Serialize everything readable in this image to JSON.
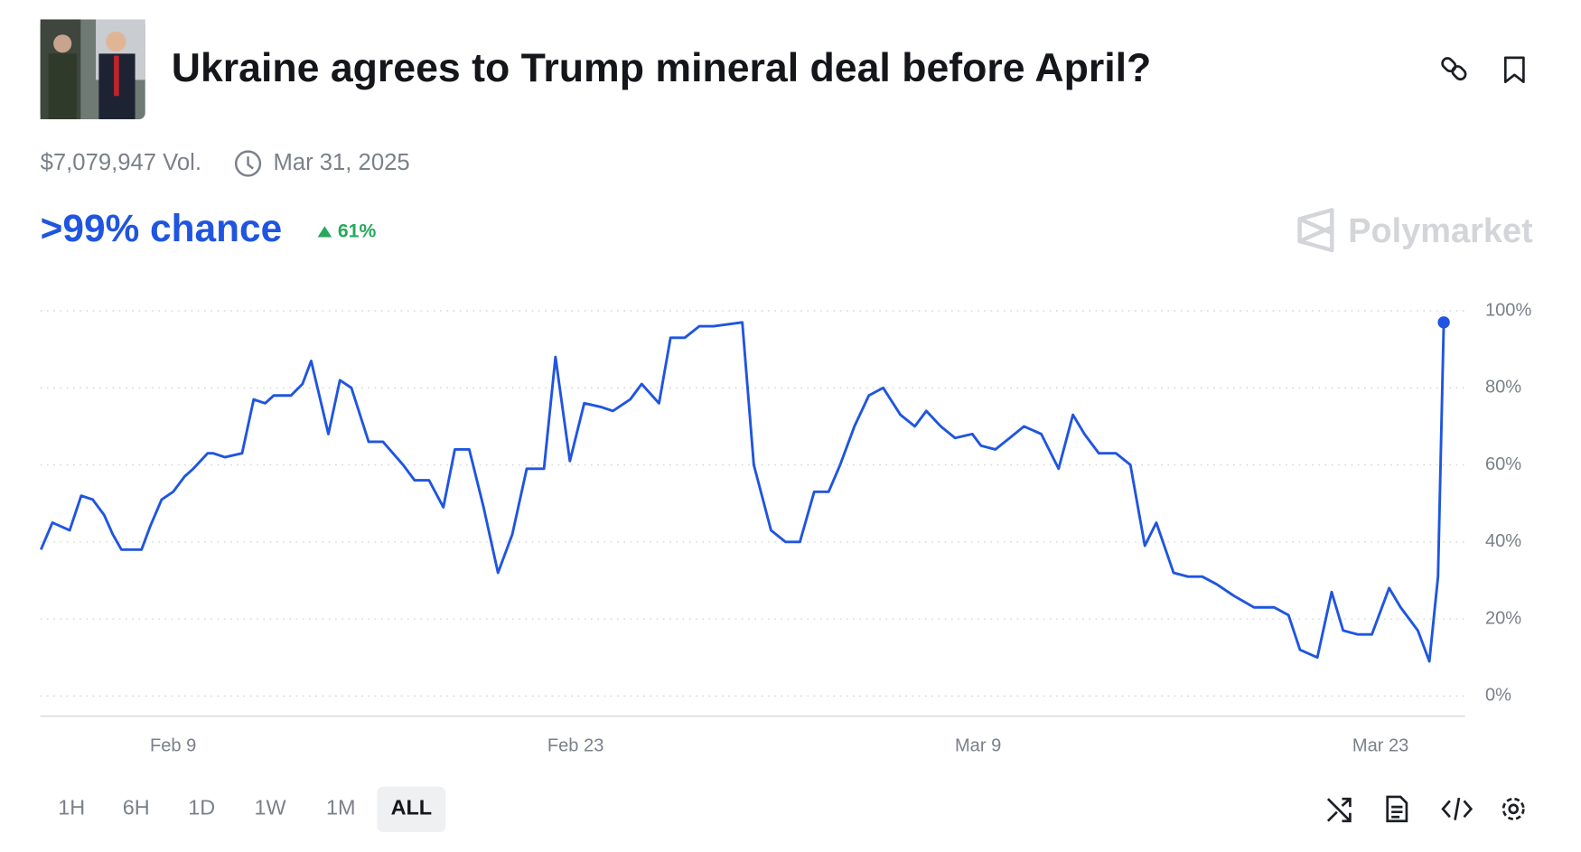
{
  "header": {
    "title": "Ukraine agrees to Trump mineral deal before April?",
    "volume": "$7,079,947 Vol.",
    "end_date": "Mar 31, 2025"
  },
  "chance": {
    "label": ">99% chance",
    "change": "61%"
  },
  "brand": "Polymarket",
  "time_ranges": [
    "1H",
    "6H",
    "1D",
    "1W",
    "1M",
    "ALL"
  ],
  "selected_range": "ALL",
  "chart_data": {
    "type": "line",
    "color": "#1f55e0",
    "grid": true,
    "x": [
      35.4,
      35.8,
      36.4,
      36.8,
      37.2,
      37.6,
      37.9,
      38.2,
      38.9,
      39.2,
      39.6,
      40.0,
      40.4,
      40.7,
      41.2,
      41.4,
      41.8,
      42.4,
      42.8,
      43.2,
      43.5,
      44.1,
      44.5,
      44.8,
      45.4,
      45.8,
      46.2,
      46.8,
      47.3,
      48.0,
      48.4,
      48.9,
      49.4,
      49.8,
      50.3,
      50.8,
      51.3,
      51.8,
      52.3,
      52.9,
      53.3,
      53.8,
      54.3,
      54.9,
      55.3,
      55.9,
      56.3,
      56.9,
      57.3,
      57.8,
      58.3,
      58.8,
      59.8,
      60.2,
      60.8,
      61.3,
      61.8,
      62.3,
      62.8,
      63.2,
      63.7,
      64.2,
      64.7,
      65.3,
      65.8,
      66.2,
      66.7,
      67.2,
      67.8,
      68.1,
      68.6,
      69.1,
      69.6,
      70.2,
      70.8,
      71.3,
      71.7,
      72.2,
      72.8,
      73.3,
      73.8,
      74.2,
      74.8,
      75.3,
      75.8,
      76.3,
      76.9,
      77.6,
      78.3,
      78.8,
      79.2,
      79.8,
      80.3,
      80.7,
      81.2,
      81.7,
      82.3,
      82.7,
      83.3,
      83.7,
      84.0,
      84.2
    ],
    "values": [
      38,
      45,
      43,
      52,
      51,
      47,
      42,
      38,
      38,
      44,
      51,
      53,
      57,
      59,
      63,
      63,
      62,
      63,
      77,
      76,
      78,
      78,
      81,
      87,
      68,
      82,
      80,
      66,
      66,
      60,
      56,
      56,
      49,
      64,
      64,
      49,
      32,
      42,
      59,
      59,
      88,
      61,
      76,
      75,
      74,
      77,
      81,
      76,
      93,
      93,
      96,
      96,
      97,
      60,
      43,
      40,
      40,
      53,
      53,
      60,
      70,
      78,
      80,
      73,
      70,
      74,
      70,
      67,
      68,
      65,
      64,
      67,
      70,
      68,
      59,
      73,
      68,
      63,
      63,
      60,
      39,
      45,
      32,
      31,
      31,
      29,
      26,
      23,
      23,
      21,
      12,
      10,
      27,
      17,
      16,
      16,
      28,
      23,
      17,
      9,
      31,
      97
    ],
    "xlim": [
      35.38,
      84.94
    ],
    "ylim": [
      0,
      100
    ],
    "xticks": [
      {
        "value": 40,
        "label": "Feb 9"
      },
      {
        "value": 54,
        "label": "Feb 23"
      },
      {
        "value": 68,
        "label": "Mar 9"
      },
      {
        "value": 82,
        "label": "Mar 23"
      }
    ],
    "yticks": [
      {
        "value": 0,
        "label": "0%"
      },
      {
        "value": 20,
        "label": "20%"
      },
      {
        "value": 40,
        "label": "40%"
      },
      {
        "value": 60,
        "label": "60%"
      },
      {
        "value": 80,
        "label": "80%"
      },
      {
        "value": 100,
        "label": "100%"
      }
    ]
  }
}
